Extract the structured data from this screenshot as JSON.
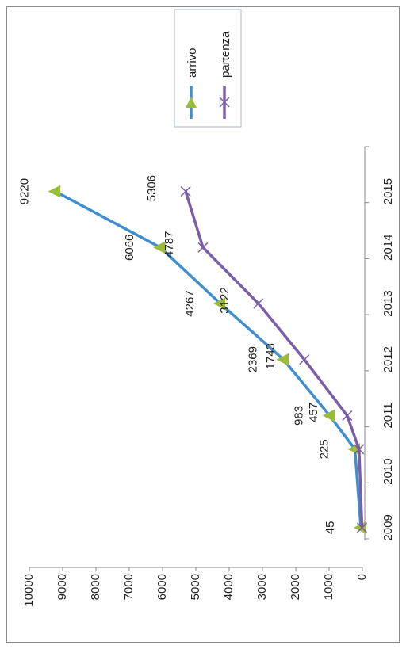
{
  "chart_data": {
    "type": "line",
    "orientation": "rotated-90-clockwise",
    "categories": [
      "2009",
      "2010",
      "2011",
      "2012",
      "2013",
      "2014",
      "2015"
    ],
    "series": [
      {
        "name": "arrivo",
        "color": "#3f8fcf",
        "marker": "triangle",
        "marker_color": "#9bbb3a",
        "x": [
          2009.2,
          2010.6,
          2011.2,
          2012.2,
          2013.2,
          2014.2,
          2015.2
        ],
        "values": [
          45,
          225,
          983,
          2369,
          4267,
          6066,
          9220
        ],
        "labels": [
          "45",
          "225",
          "983",
          "2369",
          "4267",
          "6066",
          "9220"
        ]
      },
      {
        "name": "partenza",
        "color": "#7b5ea7",
        "marker": "x",
        "x": [
          2009.2,
          2010.6,
          2011.2,
          2012.2,
          2013.2,
          2014.2,
          2015.2
        ],
        "values": [
          12,
          100,
          457,
          1743,
          3122,
          4787,
          5306
        ],
        "labels": [
          "",
          "",
          "457",
          "1743",
          "3122",
          "4787",
          "5306"
        ]
      }
    ],
    "y_ticks": [
      "0",
      "1000",
      "2000",
      "3000",
      "4000",
      "5000",
      "6000",
      "7000",
      "8000",
      "9000",
      "10000"
    ],
    "ylim": [
      0,
      10000
    ],
    "xlim": [
      2009,
      2016
    ],
    "grid": false,
    "legend": "top-right"
  }
}
